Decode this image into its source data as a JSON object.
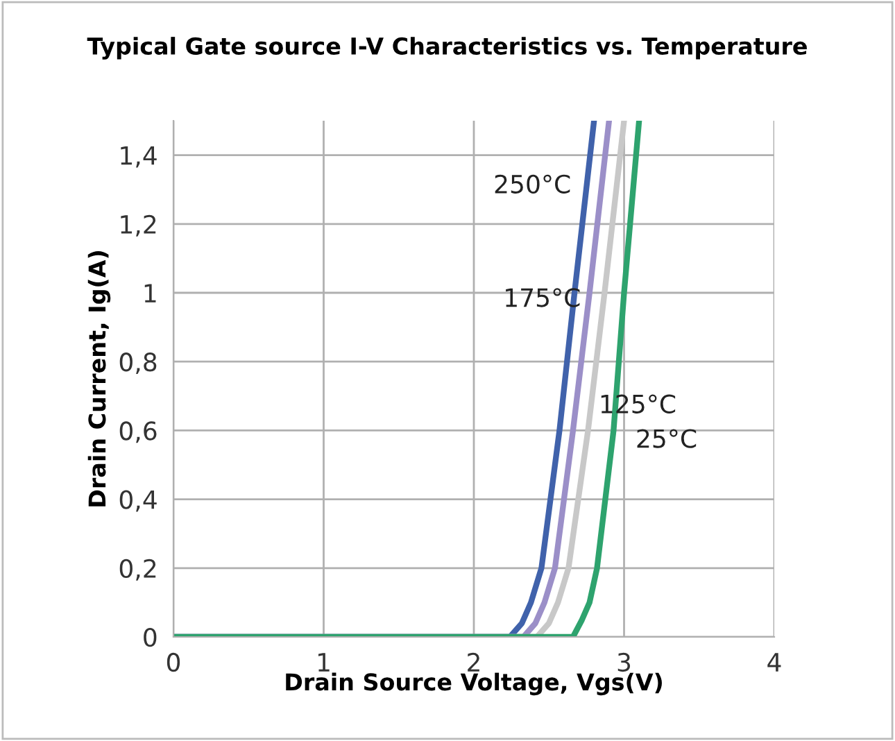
{
  "chart_data": {
    "type": "line",
    "title": "Typical Gate source I-V Characteristics vs. Temperature",
    "xlabel": "Drain Source Voltage, Vgs(V)",
    "ylabel": "Drain Current, Ig(A)",
    "series": [
      {
        "name": "250°C",
        "color": "#4062ab",
        "x": [
          0,
          2.0,
          2.24,
          2.32,
          2.38,
          2.45,
          2.57,
          2.67,
          2.8
        ],
        "values": [
          0,
          0,
          0,
          0.04,
          0.1,
          0.2,
          0.6,
          1.0,
          1.5
        ]
      },
      {
        "name": "175°C",
        "color": "#9b8fc8",
        "x": [
          0,
          2.1,
          2.33,
          2.41,
          2.47,
          2.54,
          2.66,
          2.77,
          2.9
        ],
        "values": [
          0,
          0,
          0,
          0.04,
          0.1,
          0.2,
          0.6,
          1.0,
          1.5
        ]
      },
      {
        "name": "125°C",
        "color": "#c8c8c8",
        "x": [
          0,
          2.2,
          2.42,
          2.5,
          2.56,
          2.63,
          2.76,
          2.87,
          3.0
        ],
        "values": [
          0,
          0,
          0,
          0.04,
          0.1,
          0.2,
          0.6,
          1.0,
          1.5
        ]
      },
      {
        "name": "25°C",
        "color": "#2ea36e",
        "x": [
          0,
          2.6,
          2.66,
          2.72,
          2.77,
          2.82,
          2.93,
          3.0,
          3.1
        ],
        "values": [
          0,
          0,
          0,
          0.05,
          0.1,
          0.2,
          0.6,
          1.0,
          1.5
        ]
      }
    ],
    "xlim": [
      0,
      4
    ],
    "ylim": [
      0,
      1.5
    ],
    "xticks": [
      0,
      1,
      2,
      3,
      4
    ],
    "yticks": [
      0,
      {
        "value": 0.2,
        "label": "0,2"
      },
      {
        "value": 0.4,
        "label": "0,4"
      },
      {
        "value": 0.6,
        "label": "0,6"
      },
      {
        "value": 0.8,
        "label": "0,8"
      },
      1,
      {
        "value": 1.2,
        "label": "1,2"
      },
      {
        "value": 1.4,
        "label": "1,4"
      }
    ],
    "grid": true,
    "legend": false,
    "marker": "none",
    "line_style": "solid"
  }
}
